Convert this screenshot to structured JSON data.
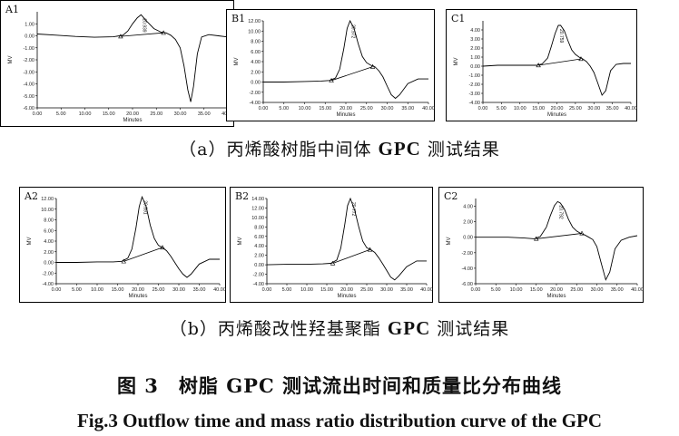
{
  "row_a_caption": {
    "prefix": "（a）丙烯酸树脂中间体 ",
    "bold": "GPC",
    "suffix": " 测试结果"
  },
  "row_b_caption": {
    "prefix": "（b）丙烯酸改性羟基聚酯 ",
    "bold": "GPC",
    "suffix": " 测试结果"
  },
  "figure_title": "图 3　树脂 GPC 测试流出时间和质量比分布曲线",
  "figure_title_en": "Fig.3  Outflow time and mass ratio distribution curve of the GPC",
  "chart_data": [
    {
      "type": "line",
      "id": "A1",
      "title": "A1",
      "xlabel": "Minutes",
      "ylabel": "MV",
      "xlim": [
        0,
        40
      ],
      "ylim": [
        -6,
        2
      ],
      "yticks": [
        "1.00",
        "0.00",
        "-1.00",
        "-2.00",
        "-3.00",
        "-4.00",
        "-5.00",
        "-6.00"
      ],
      "xticks": [
        "0.00",
        "5.00",
        "10.00",
        "15.00",
        "20.00",
        "25.00",
        "30.00",
        "35.00",
        "40.00"
      ],
      "peak_label": "20.939",
      "x": [
        0,
        4,
        8,
        12,
        16,
        18,
        19,
        20,
        21,
        21.8,
        23,
        24.5,
        26,
        27,
        28,
        29,
        30,
        30.8,
        31.6,
        32.2,
        32.8,
        33.6,
        34.5,
        36,
        38,
        40
      ],
      "y": [
        0.15,
        0.05,
        -0.05,
        -0.12,
        -0.08,
        0.05,
        0.4,
        1.0,
        1.5,
        1.75,
        1.2,
        0.6,
        0.3,
        0.25,
        0.05,
        -0.3,
        -1.0,
        -2.5,
        -4.5,
        -5.5,
        -4.2,
        -1.5,
        -0.1,
        0.1,
        0.0,
        -0.1
      ],
      "baseline_x": [
        17.5,
        26.5
      ],
      "baseline_y": [
        -0.05,
        0.25
      ]
    },
    {
      "type": "line",
      "id": "B1",
      "title": "B1",
      "xlabel": "Minutes",
      "ylabel": "MV",
      "xlim": [
        0,
        40
      ],
      "ylim": [
        -4,
        12
      ],
      "yticks": [
        "12.00",
        "10.00",
        "8.00",
        "6.00",
        "4.00",
        "2.00",
        "0.00",
        "-2.00",
        "-4.00"
      ],
      "xticks": [
        "0.00",
        "5.00",
        "10.00",
        "15.00",
        "20.00",
        "25.00",
        "30.00",
        "35.00",
        "40.00"
      ],
      "peak_label": "20.972",
      "x": [
        0,
        5,
        10,
        14,
        16,
        17.5,
        18.5,
        19.5,
        20.3,
        21,
        22,
        23,
        24,
        25,
        26,
        27,
        28,
        29,
        30,
        31,
        32,
        33,
        35,
        37.5,
        40
      ],
      "y": [
        0,
        0,
        0.1,
        0.2,
        0.3,
        0.8,
        2.5,
        6.5,
        10.5,
        12.0,
        10.5,
        7.5,
        5.0,
        3.8,
        3.3,
        3.0,
        2.2,
        1.0,
        -0.8,
        -2.5,
        -3.2,
        -2.5,
        -0.3,
        0.6,
        0.6
      ],
      "baseline_x": [
        16.5,
        26.5
      ],
      "baseline_y": [
        0.3,
        3.0
      ]
    },
    {
      "type": "line",
      "id": "C1",
      "title": "C1",
      "xlabel": "Minutes",
      "ylabel": "MV",
      "xlim": [
        0,
        40
      ],
      "ylim": [
        -4,
        5
      ],
      "yticks": [
        "4.00",
        "3.00",
        "2.00",
        "1.00",
        "0.00",
        "-1.00",
        "-2.00",
        "-3.00",
        "-4.00"
      ],
      "xticks": [
        "0.00",
        "5.00",
        "10.00",
        "15.00",
        "20.00",
        "25.00",
        "30.00",
        "35.00",
        "40.00"
      ],
      "peak_label": "20.759",
      "x": [
        0,
        4,
        8,
        12,
        14.5,
        16,
        17.5,
        18.5,
        19.5,
        20.4,
        21,
        22,
        23,
        24,
        25,
        26,
        27,
        28,
        29,
        30,
        31,
        32.2,
        33.2,
        34.5,
        36,
        38,
        40
      ],
      "y": [
        0,
        0.1,
        0.1,
        0.1,
        0.1,
        0.25,
        0.9,
        2.2,
        3.6,
        4.5,
        4.5,
        3.9,
        2.8,
        1.8,
        1.3,
        1.0,
        0.8,
        0.5,
        0,
        -0.7,
        -1.8,
        -3.2,
        -2.7,
        -0.5,
        0.2,
        0.3,
        0.3
      ],
      "baseline_x": [
        15,
        26.5
      ],
      "baseline_y": [
        0.1,
        0.8
      ]
    },
    {
      "type": "line",
      "id": "A2",
      "title": "A2",
      "xlabel": "Minutes",
      "ylabel": "MV",
      "xlim": [
        0,
        40
      ],
      "ylim": [
        -4,
        12
      ],
      "yticks": [
        "12.00",
        "10.00",
        "8.00",
        "6.00",
        "4.00",
        "2.00",
        "0.00",
        "-2.00",
        "-4.00"
      ],
      "xticks": [
        "0.00",
        "5.00",
        "10.00",
        "15.00",
        "20.00",
        "25.00",
        "30.00",
        "35.00",
        "40.00"
      ],
      "peak_label": "20.891",
      "x": [
        0,
        5,
        10,
        14,
        16,
        17.5,
        18.5,
        19.5,
        20.3,
        21,
        22,
        23,
        24,
        25,
        26,
        27,
        28,
        29,
        30,
        31,
        32,
        33,
        35,
        37.5,
        40
      ],
      "y": [
        0,
        0,
        0.1,
        0.1,
        0.2,
        0.8,
        2.5,
        6.5,
        10.5,
        12.3,
        10.5,
        7.0,
        4.5,
        3.2,
        2.8,
        2.2,
        1.2,
        0,
        -1.2,
        -2.2,
        -2.8,
        -2.2,
        -0.3,
        0.6,
        0.6
      ],
      "baseline_x": [
        16.5,
        26
      ],
      "baseline_y": [
        0.2,
        2.8
      ]
    },
    {
      "type": "line",
      "id": "B2",
      "title": "B2",
      "xlabel": "Minutes",
      "ylabel": "MV",
      "xlim": [
        0,
        40
      ],
      "ylim": [
        -4,
        14
      ],
      "yticks": [
        "14.00",
        "12.00",
        "10.00",
        "8.00",
        "6.00",
        "4.00",
        "2.00",
        "0.00",
        "-2.00",
        "-4.00"
      ],
      "xticks": [
        "0.00",
        "5.00",
        "10.00",
        "15.00",
        "20.00",
        "25.00",
        "30.00",
        "35.00",
        "40.00"
      ],
      "peak_label": "20.772",
      "x": [
        0,
        5,
        10,
        14,
        16,
        17.5,
        18.5,
        19.5,
        20.2,
        20.9,
        22,
        23,
        24,
        25,
        26,
        27,
        28,
        29,
        30,
        31,
        32,
        33,
        35,
        37.5,
        40
      ],
      "y": [
        0,
        0.1,
        0.1,
        0.2,
        0.3,
        1.0,
        3.5,
        8.5,
        12.5,
        14.0,
        11.5,
        8.0,
        5.0,
        3.6,
        3.2,
        2.6,
        1.5,
        0.2,
        -1.2,
        -2.6,
        -3.2,
        -2.4,
        -0.4,
        0.8,
        0.8
      ],
      "baseline_x": [
        16.5,
        25.8
      ],
      "baseline_y": [
        0.3,
        3.2
      ]
    },
    {
      "type": "line",
      "id": "C2",
      "title": "C2",
      "xlabel": "Minutes",
      "ylabel": "MV",
      "xlim": [
        0,
        40
      ],
      "ylim": [
        -6,
        5
      ],
      "yticks": [
        "4.00",
        "2.00",
        "0.00",
        "-2.00",
        "-4.00",
        "-6.00"
      ],
      "xticks": [
        "0.00",
        "5.00",
        "10.00",
        "15.00",
        "20.00",
        "25.00",
        "30.00",
        "35.00",
        "40.00"
      ],
      "peak_label": "20.792",
      "x": [
        0,
        4,
        8,
        12,
        14.5,
        16,
        17.5,
        18.5,
        19.5,
        20.3,
        21,
        22,
        23,
        24,
        25,
        26,
        27,
        28,
        29,
        30,
        31,
        32.2,
        33.2,
        34.5,
        36,
        38,
        40
      ],
      "y": [
        0,
        0,
        0,
        -0.1,
        -0.2,
        0.1,
        1.3,
        2.8,
        4.1,
        4.6,
        4.4,
        3.6,
        2.3,
        1.3,
        0.8,
        0.5,
        0.3,
        0,
        -0.3,
        -1.2,
        -3.2,
        -5.5,
        -4.5,
        -1.5,
        -0.4,
        0,
        0.2
      ],
      "baseline_x": [
        15,
        26.3
      ],
      "baseline_y": [
        -0.2,
        0.5
      ]
    }
  ]
}
